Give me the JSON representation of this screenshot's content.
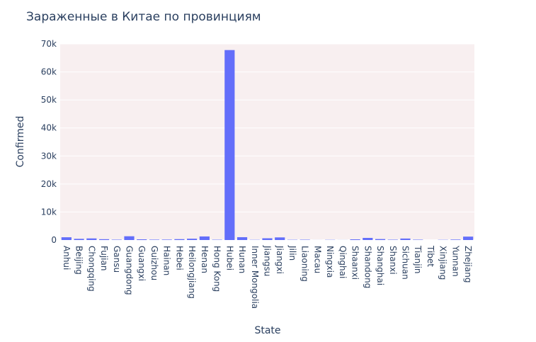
{
  "chart_data": {
    "type": "bar",
    "title": "Зараженные в Китае по провинциям",
    "xlabel": "State",
    "ylabel": "Confirmed",
    "ylim": [
      0,
      70000
    ],
    "yticks": [
      0,
      10000,
      20000,
      30000,
      40000,
      50000,
      60000,
      70000
    ],
    "ytick_labels": [
      "0",
      "10k",
      "20k",
      "30k",
      "40k",
      "50k",
      "60k",
      "70k"
    ],
    "grid": true,
    "bar_color": "#636efa",
    "plot_bg": "#f8eff0",
    "categories": [
      "Anhui",
      "Beijing",
      "Chongqing",
      "Fujian",
      "Gansu",
      "Guangdong",
      "Guangxi",
      "Guizhou",
      "Hainan",
      "Hebei",
      "Heilongjiang",
      "Henan",
      "Hong Kong",
      "Hubei",
      "Hunan",
      "Inner Mongolia",
      "Jiangsu",
      "Jiangxi",
      "Jilin",
      "Liaoning",
      "Macau",
      "Ningxia",
      "Qinghai",
      "Shaanxi",
      "Shandong",
      "Shanghai",
      "Shanxi",
      "Sichuan",
      "Tianjin",
      "Tibet",
      "Xinjiang",
      "Yunnan",
      "Zhejiang"
    ],
    "values": [
      990,
      430,
      580,
      300,
      140,
      1350,
      250,
      150,
      170,
      320,
      480,
      1280,
      120,
      67800,
      1020,
      80,
      630,
      940,
      95,
      130,
      12,
      75,
      20,
      250,
      760,
      350,
      135,
      540,
      140,
      1,
      80,
      180,
      1220
    ]
  }
}
